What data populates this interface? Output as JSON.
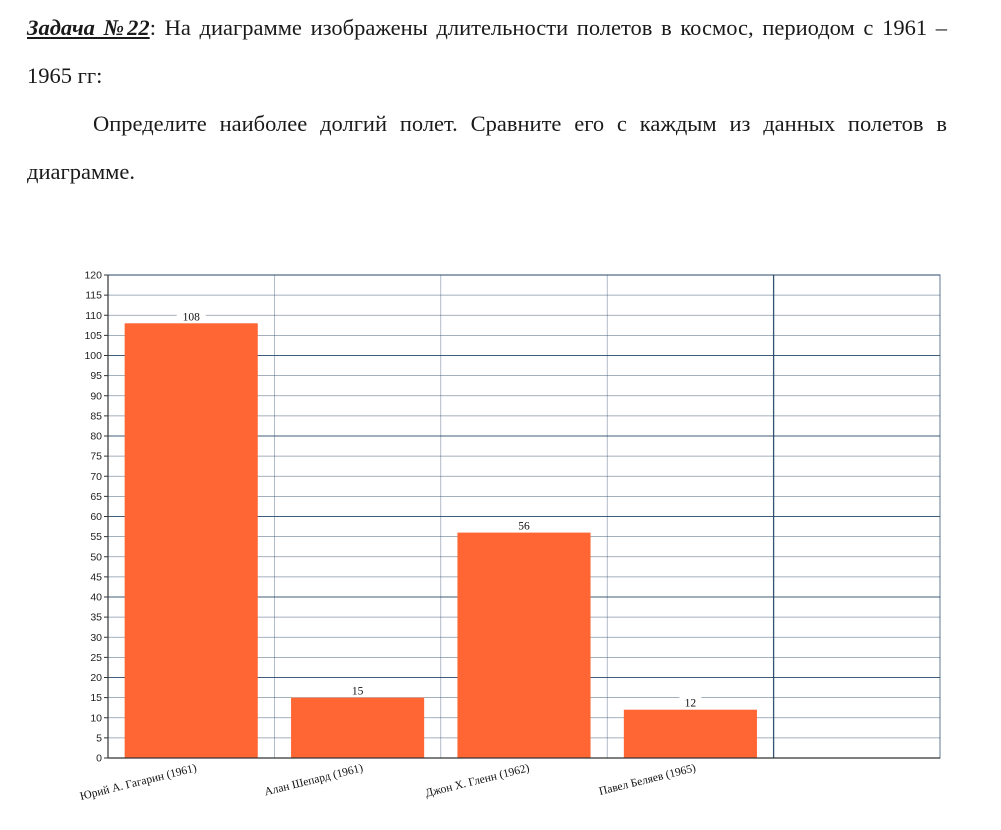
{
  "task": {
    "label": "Задача №22",
    "statement": ": На диаграмме изображены длительности полетов в космос, периодом с 1961 – 1965 гг:",
    "question": "Определите наиболее долгий полет. Сравните его с каждым из данных полетов в диаграмме."
  },
  "colors": {
    "bar": "#ff6633",
    "grid": "#1f3f63",
    "axis": "#333333"
  },
  "chart_data": {
    "type": "bar",
    "categories": [
      "Юрий А. Гагарин (1961)",
      "Алан Шепард (1961)",
      "Джон Х. Гленн (1962)",
      "Павел Беляев (1965)"
    ],
    "values": [
      108,
      15,
      56,
      12
    ],
    "data_labels": [
      "108",
      "15",
      "56",
      "12"
    ],
    "ylim": [
      0,
      120
    ],
    "y_ticks": [
      "0",
      "5",
      "10",
      "15",
      "20",
      "25",
      "30",
      "35",
      "40",
      "45",
      "50",
      "55",
      "60",
      "65",
      "70",
      "75",
      "80",
      "85",
      "90",
      "95",
      "100",
      "105",
      "110",
      "115",
      "120"
    ],
    "grid": true,
    "title": "",
    "xlabel": "",
    "ylabel": ""
  }
}
